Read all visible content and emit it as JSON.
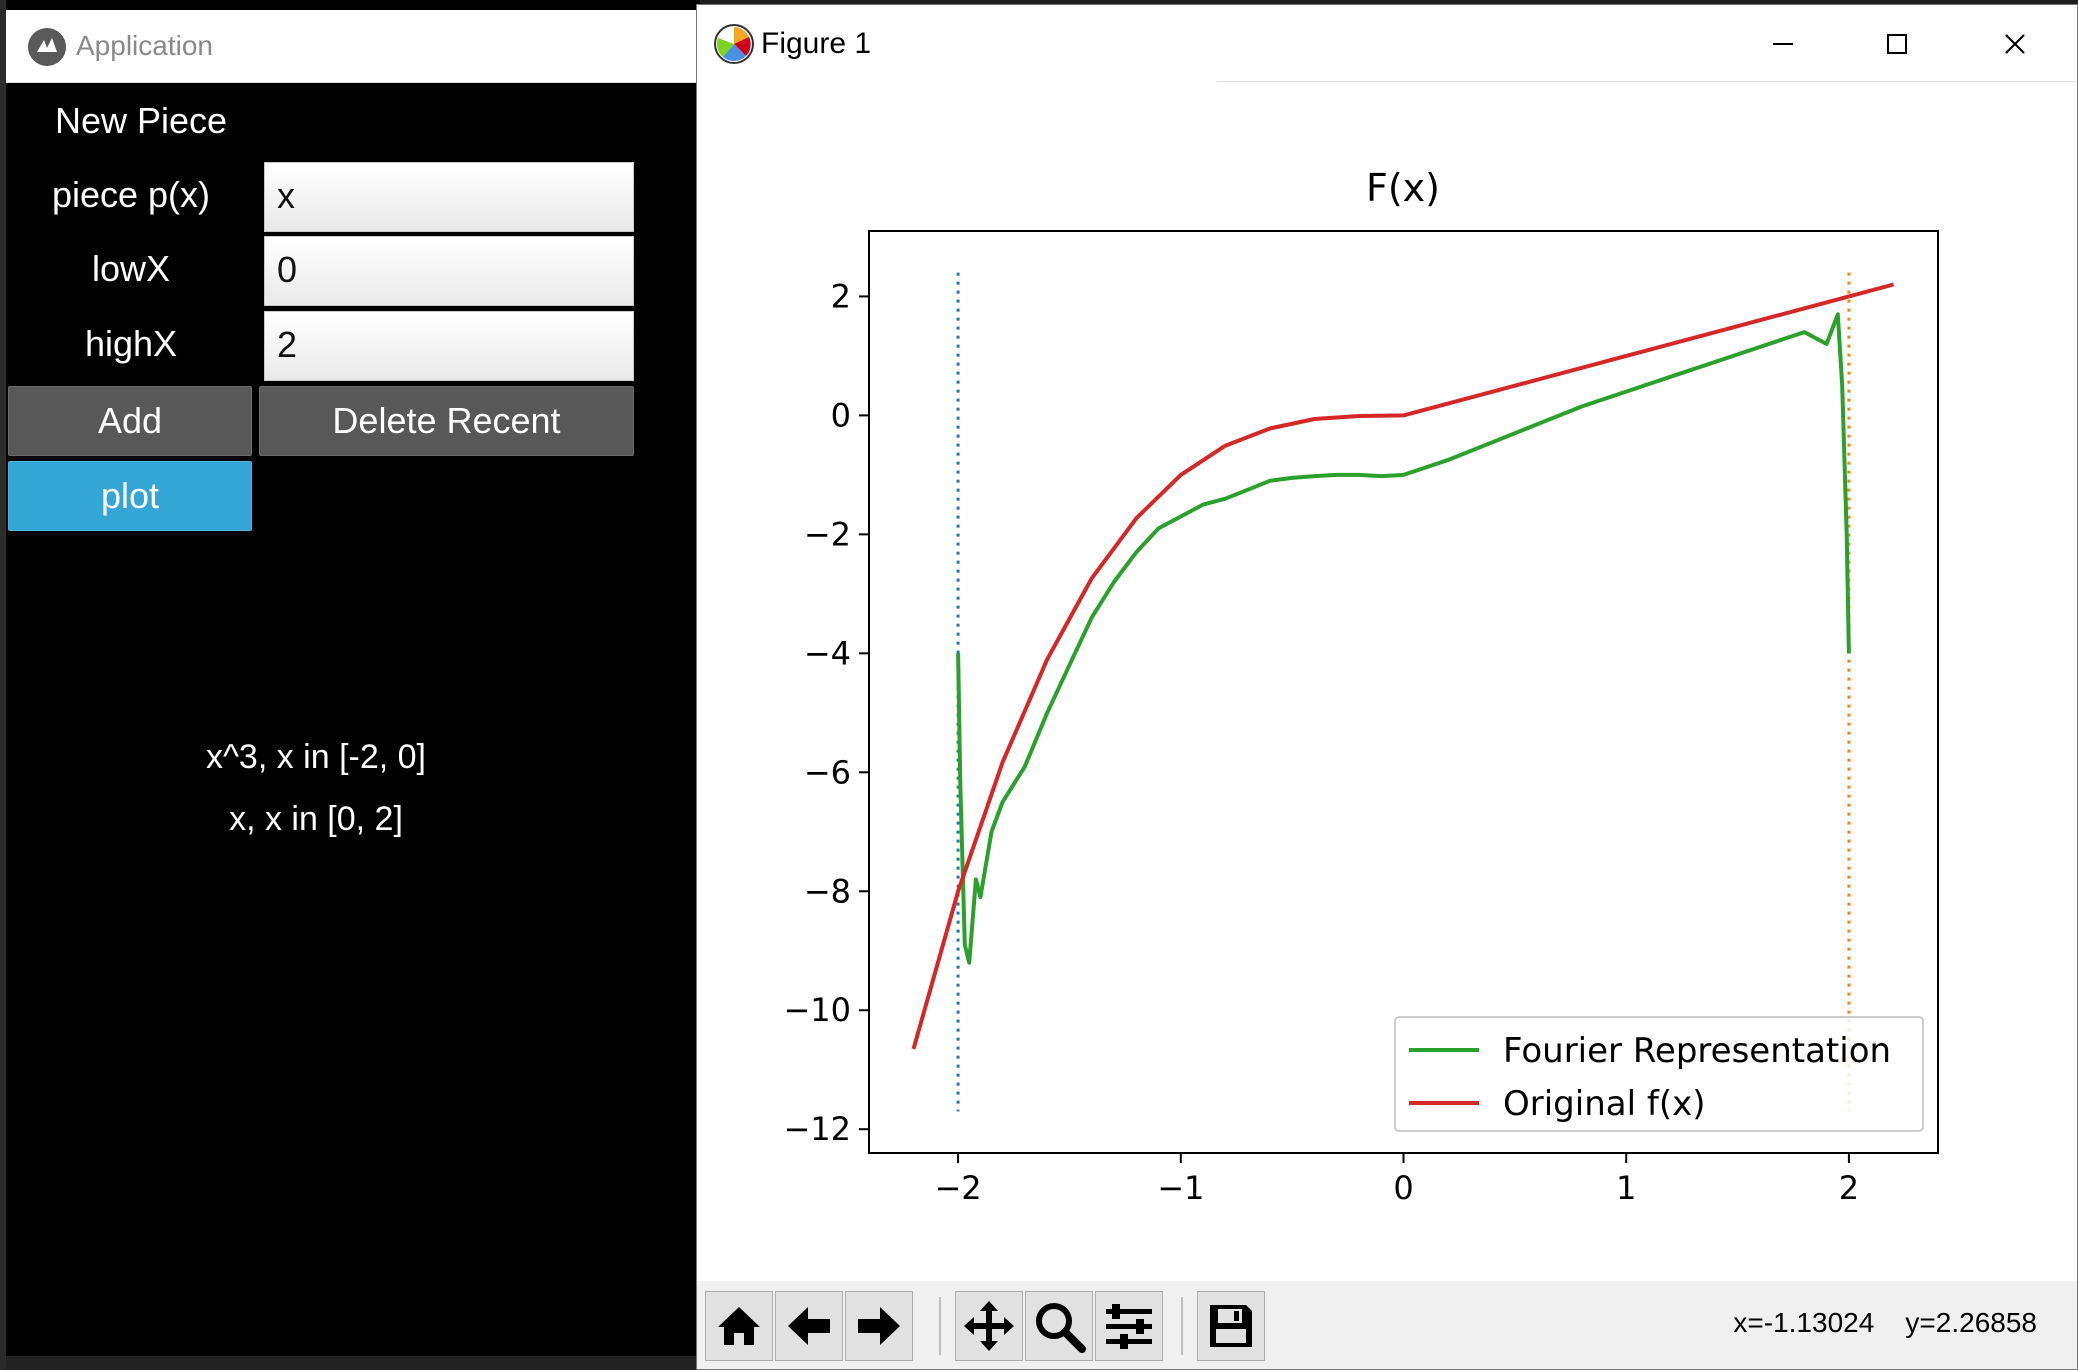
{
  "app": {
    "title": "Application",
    "header": "New Piece",
    "fields": [
      {
        "label": "piece p(x)",
        "value": "x"
      },
      {
        "label": "lowX",
        "value": "0"
      },
      {
        "label": "highX",
        "value": "2"
      }
    ],
    "buttons": {
      "add": "Add",
      "delete": "Delete Recent",
      "plot": "plot"
    },
    "pieces": [
      "x^3, x in [-2, 0]",
      "x, x in [0, 2]"
    ]
  },
  "figure": {
    "window_title": "Figure 1",
    "coords": {
      "x": "x=-1.13024",
      "y": "y=2.26858"
    },
    "toolbar": [
      "home-icon",
      "back-arrow-icon",
      "forward-arrow-icon",
      "pan-icon",
      "zoom-icon",
      "configure-subplots-icon",
      "save-icon"
    ]
  },
  "chart_data": {
    "type": "line",
    "title": "F(x)",
    "xlabel": "",
    "ylabel": "",
    "xlim": [
      -2.4,
      2.4
    ],
    "ylim": [
      -12.4,
      3.1
    ],
    "xticks": [
      -2,
      -1,
      0,
      1,
      2
    ],
    "xtick_labels": [
      "−2",
      "−1",
      "0",
      "1",
      "2"
    ],
    "yticks": [
      2,
      0,
      -2,
      -4,
      -6,
      -8,
      -10,
      -12
    ],
    "ytick_labels": [
      "2",
      "0",
      "−2",
      "−4",
      "−6",
      "−8",
      "−10",
      "−12"
    ],
    "legend_position": "lower-right",
    "grid": false,
    "series": [
      {
        "name": "Fourier Representation",
        "color": "#2ca02c",
        "x": [
          -2.0,
          -1.99,
          -1.97,
          -1.95,
          -1.92,
          -1.9,
          -1.85,
          -1.8,
          -1.7,
          -1.6,
          -1.5,
          -1.4,
          -1.3,
          -1.2,
          -1.1,
          -1.0,
          -0.9,
          -0.8,
          -0.7,
          -0.6,
          -0.5,
          -0.4,
          -0.3,
          -0.2,
          -0.1,
          0.0,
          0.2,
          0.4,
          0.6,
          0.8,
          1.0,
          1.2,
          1.4,
          1.6,
          1.8,
          1.9,
          1.95,
          1.97,
          1.99,
          2.0
        ],
        "y": [
          -4.0,
          -6.2,
          -8.9,
          -9.2,
          -7.8,
          -8.1,
          -7.0,
          -6.5,
          -5.9,
          -5.0,
          -4.2,
          -3.4,
          -2.8,
          -2.3,
          -1.9,
          -1.7,
          -1.5,
          -1.4,
          -1.25,
          -1.1,
          -1.05,
          -1.02,
          -1.0,
          -1.0,
          -1.02,
          -1.0,
          -0.75,
          -0.45,
          -0.15,
          0.15,
          0.4,
          0.65,
          0.9,
          1.15,
          1.4,
          1.2,
          1.7,
          0.5,
          -2.0,
          -4.0
        ]
      },
      {
        "name": "Original f(x)",
        "color": "#d62728",
        "x": [
          -2.2,
          -2.0,
          -1.8,
          -1.6,
          -1.4,
          -1.2,
          -1.0,
          -0.8,
          -0.6,
          -0.4,
          -0.2,
          0.0,
          0.5,
          1.0,
          1.5,
          2.0,
          2.2
        ],
        "y": [
          -10.65,
          -8.0,
          -5.83,
          -4.1,
          -2.74,
          -1.73,
          -1.0,
          -0.51,
          -0.22,
          -0.06,
          -0.01,
          0.0,
          0.5,
          1.0,
          1.5,
          2.0,
          2.2
        ]
      }
    ],
    "vlines": [
      {
        "x": -2,
        "color": "#1f77b4",
        "ymin": -11.7,
        "ymax": 2.4
      },
      {
        "x": 2,
        "color": "#ff7f0e",
        "ymin": -11.7,
        "ymax": 2.4
      }
    ]
  }
}
